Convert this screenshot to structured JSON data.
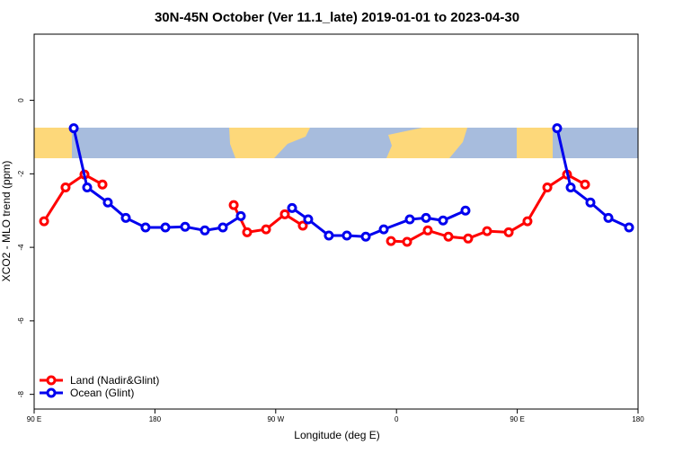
{
  "chart_data": {
    "type": "line",
    "title": "30N-45N October (Ver 11.1_late)   2019-01-01 to 2023-04-30",
    "x_label": "Longitude (deg E)",
    "y_label": "XCO2 - MLO trend (ppm)",
    "xlim": [
      90,
      540
    ],
    "ylim": [
      -8.4,
      1.8
    ],
    "xticks": [
      {
        "value": 90,
        "label": "90 E"
      },
      180,
      {
        "value": 270,
        "label": "90 W"
      },
      {
        "value": 360,
        "label": "0"
      },
      {
        "value": 450,
        "label": "90 E"
      },
      {
        "value": 540,
        "label": "180"
      }
    ],
    "yticks": [
      0,
      -2,
      -4,
      -6,
      -8
    ],
    "legend": "bottom-left",
    "series": [
      {
        "name": "Land (Nadir&Glint)",
        "color": "#ff0000",
        "x": [
          97.4,
          113.4,
          127.5,
          140.9,
          null,
          238.7,
          248.7,
          262.8,
          276.8,
          290.2,
          null,
          355.9,
          367.9,
          383.3,
          398.7,
          413.4,
          427.5,
          443.6,
          457.6,
          472.4,
          487.1,
          500.5
        ],
        "values": [
          -3.29,
          -2.37,
          -2.02,
          -2.29,
          null,
          -2.85,
          -3.59,
          -3.51,
          -3.1,
          -3.41,
          null,
          -3.83,
          -3.85,
          -3.54,
          -3.71,
          -3.76,
          -3.56,
          -3.59,
          -3.29,
          -2.37,
          -2.02,
          -2.29
        ]
      },
      {
        "name": "Ocean (Glint)",
        "color": "#0000ee",
        "x": [
          119.5,
          129.5,
          144.9,
          158.3,
          173,
          187.8,
          202.5,
          217.2,
          230.6,
          244,
          null,
          282.2,
          294.2,
          309.6,
          323,
          337.1,
          350.5,
          369.9,
          382,
          394.7,
          411.4,
          null,
          479.7,
          489.8,
          504.5,
          517.9,
          533.3
        ],
        "values": [
          -0.76,
          -2.37,
          -2.78,
          -3.2,
          -3.46,
          -3.46,
          -3.44,
          -3.54,
          -3.46,
          -3.15,
          null,
          -2.93,
          -3.24,
          -3.68,
          -3.68,
          -3.71,
          -3.51,
          -3.24,
          -3.2,
          -3.27,
          -3.0,
          null,
          -0.76,
          -2.37,
          -2.78,
          -3.2,
          -3.46
        ]
      }
    ]
  }
}
